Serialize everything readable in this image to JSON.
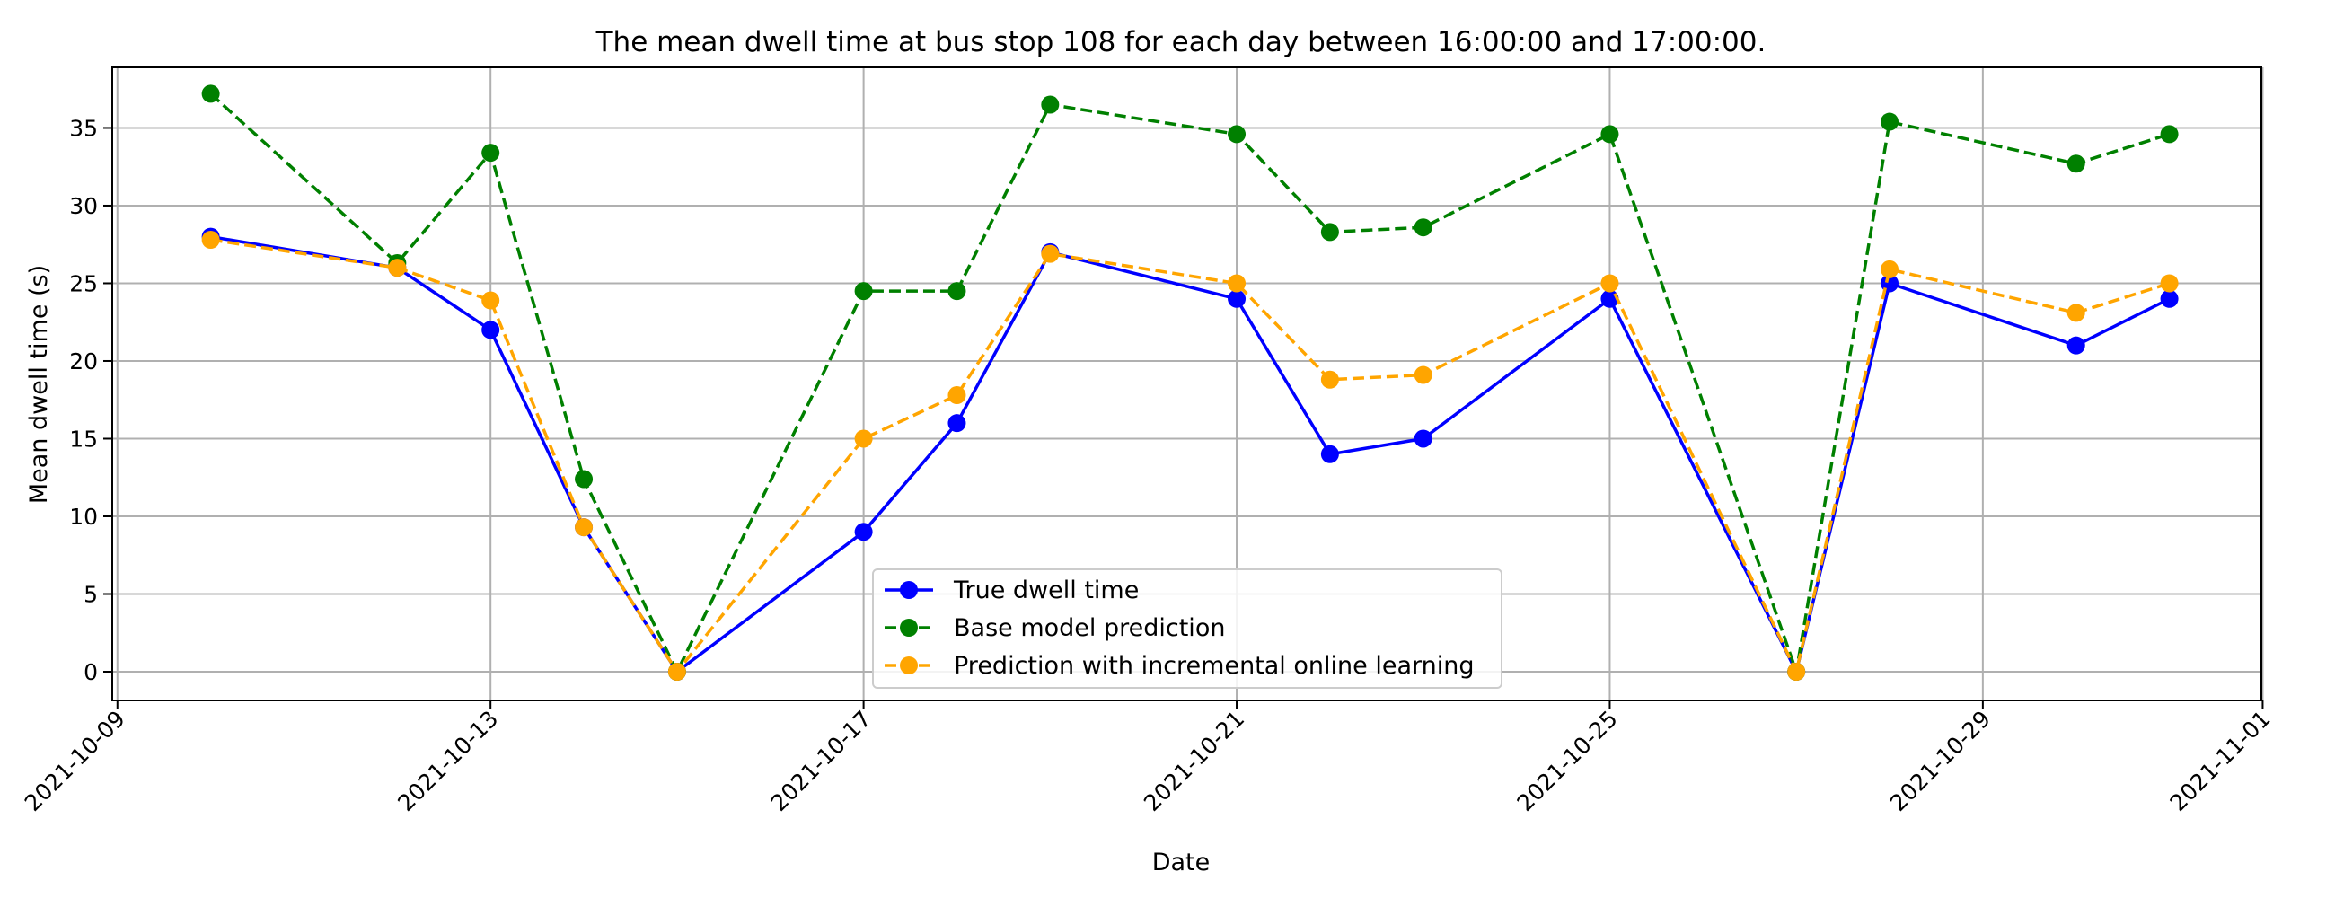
{
  "chart_data": {
    "type": "line",
    "title": "The mean dwell time at bus stop 108 for each day between 16:00:00 and 17:00:00.",
    "xlabel": "Date",
    "ylabel": "Mean dwell time (s)",
    "x_range": [
      "2021-10-08T22:40",
      "2021-10-31T23:40"
    ],
    "ylim": [
      -1.85,
      38.9
    ],
    "x_ticks": [
      "2021-10-09",
      "2021-10-13",
      "2021-10-17",
      "2021-10-21",
      "2021-10-25",
      "2021-10-29",
      "2021-11-01"
    ],
    "y_ticks": [
      0,
      5,
      10,
      15,
      20,
      25,
      30,
      35
    ],
    "grid": true,
    "legend_position": "lower center",
    "x": [
      "2021-10-10",
      "2021-10-12",
      "2021-10-13",
      "2021-10-14",
      "2021-10-15",
      "2021-10-17",
      "2021-10-18",
      "2021-10-19",
      "2021-10-21",
      "2021-10-22",
      "2021-10-23",
      "2021-10-25",
      "2021-10-27",
      "2021-10-28",
      "2021-10-30",
      "2021-10-31"
    ],
    "series": [
      {
        "name": "True dwell time",
        "color": "#0000ff",
        "line_style": "solid",
        "values": [
          28,
          26,
          22,
          9.3,
          0,
          9,
          16,
          27,
          24,
          14,
          15,
          24,
          0,
          25,
          21,
          24
        ]
      },
      {
        "name": "Base model prediction",
        "color": "#008000",
        "line_style": "dashed",
        "values": [
          37.2,
          26.3,
          33.4,
          12.4,
          0,
          24.5,
          24.5,
          36.5,
          34.6,
          28.3,
          28.6,
          34.6,
          0,
          35.4,
          32.7,
          34.6
        ]
      },
      {
        "name": "Prediction with incremental online learning",
        "color": "#ffa500",
        "line_style": "dashed",
        "values": [
          27.8,
          26,
          23.9,
          9.3,
          0,
          15,
          17.8,
          26.9,
          25,
          18.8,
          19.1,
          25,
          0,
          25.9,
          23.1,
          25
        ]
      }
    ]
  }
}
